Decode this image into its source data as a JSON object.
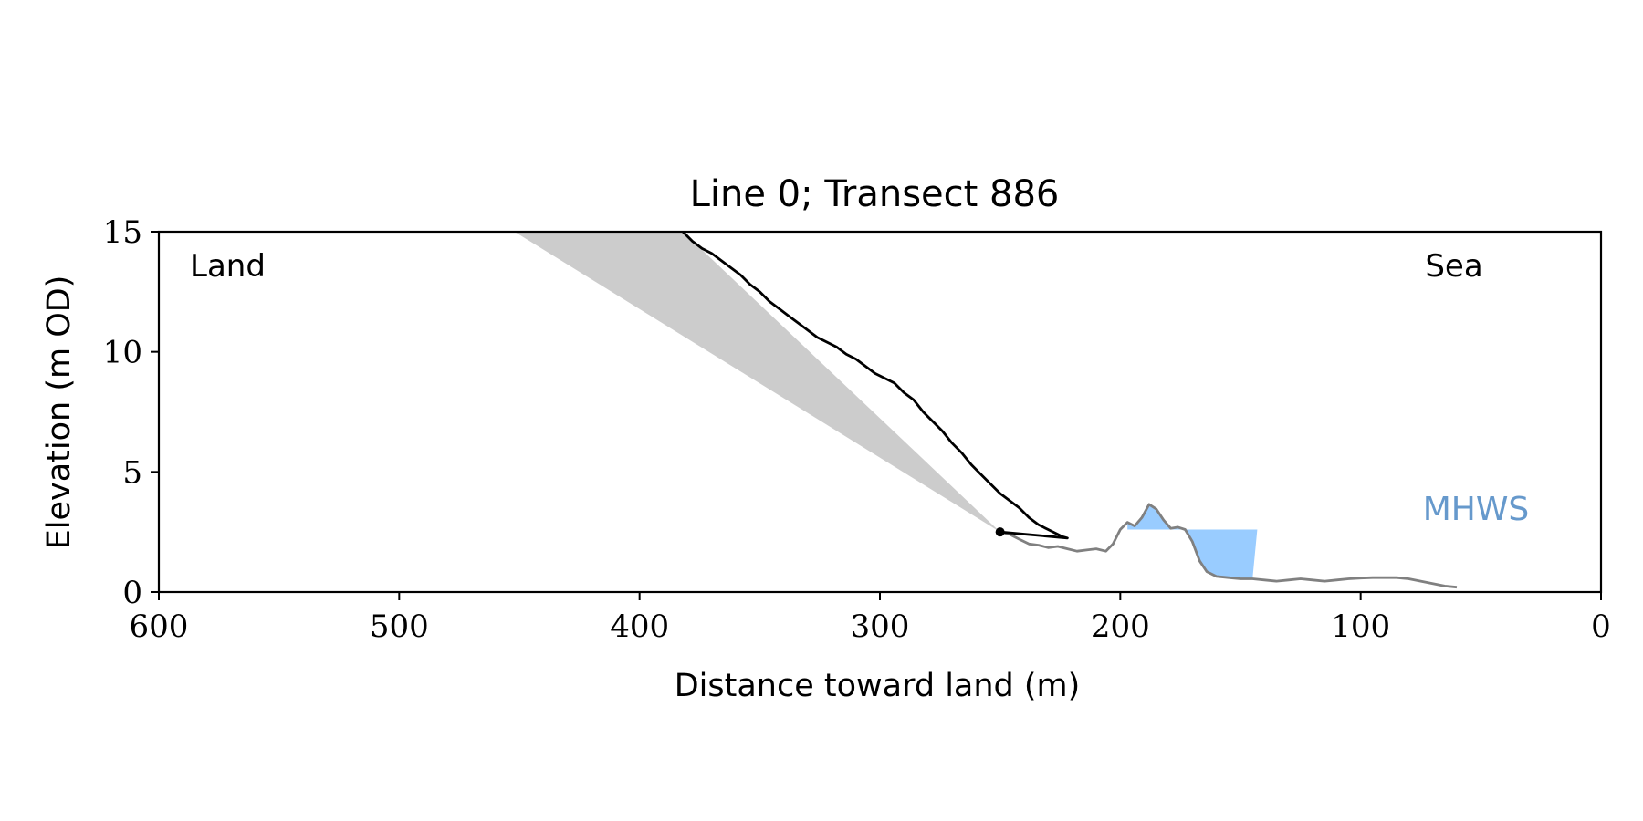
{
  "chart_data": {
    "type": "line",
    "title": "Line 0; Transect 886",
    "xlabel": "Distance toward land (m)",
    "ylabel": "Elevation (m OD)",
    "xlim": [
      600,
      0
    ],
    "ylim": [
      0,
      15
    ],
    "x_axis_reversed": true,
    "x_ticks": [
      600,
      500,
      400,
      300,
      200,
      100,
      0
    ],
    "y_ticks": [
      0,
      5,
      10,
      15
    ],
    "annotations": {
      "left": "Land",
      "right": "Sea",
      "water_label": "MHWS"
    },
    "colors": {
      "cliff_line": "#000000",
      "beach_line": "#808080",
      "shade": "#cccccc",
      "water": "#99ccff",
      "mhws_text": "#6699cc"
    },
    "series": [
      {
        "role": "cliff-profile",
        "points": [
          [
            382,
            15.0
          ],
          [
            378,
            14.6
          ],
          [
            374,
            14.3
          ],
          [
            370,
            14.1
          ],
          [
            366,
            13.8
          ],
          [
            362,
            13.5
          ],
          [
            358,
            13.2
          ],
          [
            354,
            12.8
          ],
          [
            350,
            12.5
          ],
          [
            346,
            12.1
          ],
          [
            342,
            11.8
          ],
          [
            338,
            11.5
          ],
          [
            334,
            11.2
          ],
          [
            330,
            10.9
          ],
          [
            326,
            10.6
          ],
          [
            322,
            10.4
          ],
          [
            318,
            10.2
          ],
          [
            314,
            9.9
          ],
          [
            310,
            9.7
          ],
          [
            306,
            9.4
          ],
          [
            302,
            9.1
          ],
          [
            298,
            8.9
          ],
          [
            294,
            8.7
          ],
          [
            290,
            8.3
          ],
          [
            286,
            8.0
          ],
          [
            282,
            7.5
          ],
          [
            278,
            7.1
          ],
          [
            274,
            6.7
          ],
          [
            270,
            6.2
          ],
          [
            266,
            5.8
          ],
          [
            262,
            5.3
          ],
          [
            258,
            4.9
          ],
          [
            254,
            4.5
          ],
          [
            250,
            4.1
          ],
          [
            246,
            3.8
          ],
          [
            242,
            3.5
          ],
          [
            238,
            3.1
          ],
          [
            234,
            2.8
          ],
          [
            230,
            2.6
          ],
          [
            226,
            2.4
          ],
          [
            224,
            2.3
          ],
          [
            222,
            2.25
          ]
        ]
      },
      {
        "role": "beach-profile",
        "points": [
          [
            250,
            2.5
          ],
          [
            246,
            2.4
          ],
          [
            242,
            2.2
          ],
          [
            238,
            2.0
          ],
          [
            234,
            1.95
          ],
          [
            230,
            1.85
          ],
          [
            226,
            1.9
          ],
          [
            222,
            1.8
          ],
          [
            218,
            1.7
          ],
          [
            214,
            1.75
          ],
          [
            210,
            1.8
          ],
          [
            206,
            1.7
          ],
          [
            203,
            2.0
          ],
          [
            200,
            2.6
          ],
          [
            197,
            2.9
          ],
          [
            194,
            2.75
          ],
          [
            191,
            3.1
          ],
          [
            188,
            3.65
          ],
          [
            185,
            3.45
          ],
          [
            182,
            3.0
          ],
          [
            179,
            2.65
          ],
          [
            176,
            2.7
          ],
          [
            173,
            2.6
          ],
          [
            170,
            2.1
          ],
          [
            167,
            1.3
          ],
          [
            164,
            0.85
          ],
          [
            160,
            0.65
          ],
          [
            155,
            0.6
          ],
          [
            150,
            0.55
          ],
          [
            145,
            0.55
          ],
          [
            140,
            0.5
          ],
          [
            135,
            0.45
          ],
          [
            130,
            0.5
          ],
          [
            125,
            0.55
          ],
          [
            120,
            0.5
          ],
          [
            115,
            0.45
          ],
          [
            110,
            0.5
          ],
          [
            105,
            0.55
          ],
          [
            100,
            0.58
          ],
          [
            95,
            0.6
          ],
          [
            90,
            0.6
          ],
          [
            85,
            0.6
          ],
          [
            80,
            0.55
          ],
          [
            75,
            0.45
          ],
          [
            70,
            0.35
          ],
          [
            65,
            0.25
          ],
          [
            60,
            0.2
          ]
        ]
      },
      {
        "role": "shaded-wedge",
        "points": [
          [
            452,
            15.0
          ],
          [
            382,
            15.0
          ],
          [
            250,
            2.5
          ]
        ]
      },
      {
        "role": "cliff-toe-marker",
        "points": [
          [
            250,
            2.5
          ]
        ]
      },
      {
        "role": "mhws-water",
        "x_from": 197,
        "x_to": 143,
        "level": 2.6
      }
    ]
  }
}
